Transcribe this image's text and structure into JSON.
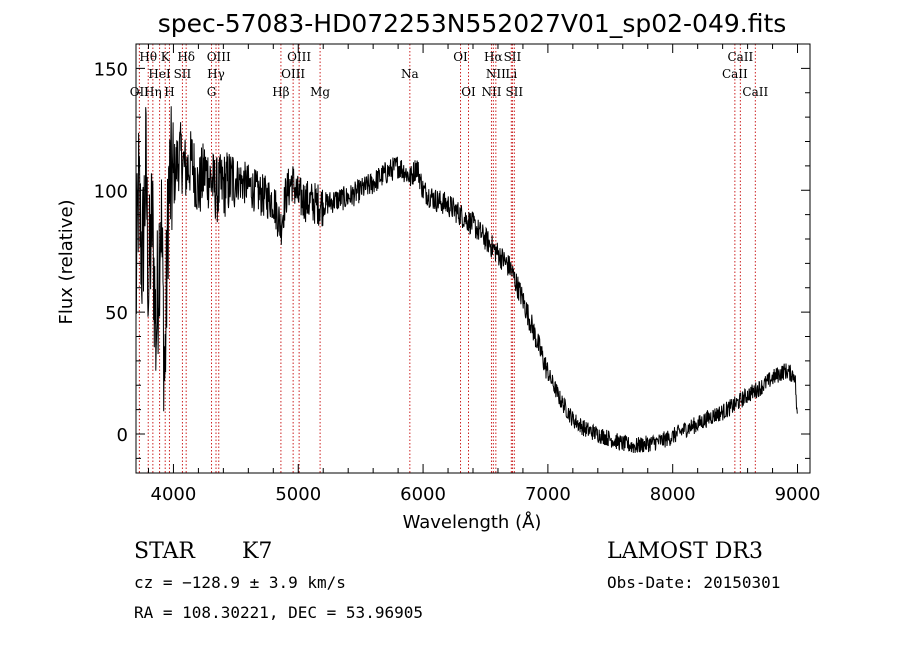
{
  "chart_data": {
    "type": "line",
    "title": "spec-57083-HD072253N552027V01_sp02-049.fits",
    "xlabel": "Wavelength (Å)",
    "ylabel": "Flux (relative)",
    "xlim": [
      3700,
      9100
    ],
    "ylim": [
      -16,
      160
    ],
    "xticks": [
      4000,
      5000,
      6000,
      7000,
      8000,
      9000
    ],
    "yticks": [
      0,
      50,
      100,
      150
    ],
    "spectrum_anchors": [
      [
        3700,
        55
      ],
      [
        3720,
        100
      ],
      [
        3750,
        70
      ],
      [
        3780,
        110
      ],
      [
        3800,
        60
      ],
      [
        3830,
        90
      ],
      [
        3860,
        40
      ],
      [
        3900,
        95
      ],
      [
        3930,
        20
      ],
      [
        3960,
        100
      ],
      [
        4000,
        105
      ],
      [
        4050,
        115
      ],
      [
        4100,
        108
      ],
      [
        4150,
        112
      ],
      [
        4200,
        100
      ],
      [
        4250,
        108
      ],
      [
        4300,
        104
      ],
      [
        4350,
        100
      ],
      [
        4400,
        102
      ],
      [
        4500,
        105
      ],
      [
        4600,
        102
      ],
      [
        4700,
        98
      ],
      [
        4800,
        96
      ],
      [
        4860,
        85
      ],
      [
        4900,
        98
      ],
      [
        4950,
        104
      ],
      [
        5000,
        97
      ],
      [
        5100,
        95
      ],
      [
        5200,
        94
      ],
      [
        5300,
        96
      ],
      [
        5400,
        97
      ],
      [
        5500,
        100
      ],
      [
        5600,
        103
      ],
      [
        5700,
        107
      ],
      [
        5800,
        110
      ],
      [
        5850,
        108
      ],
      [
        5900,
        105
      ],
      [
        5950,
        110
      ],
      [
        6000,
        100
      ],
      [
        6100,
        96
      ],
      [
        6200,
        94
      ],
      [
        6300,
        90
      ],
      [
        6400,
        86
      ],
      [
        6500,
        80
      ],
      [
        6600,
        74
      ],
      [
        6700,
        68
      ],
      [
        6800,
        55
      ],
      [
        6900,
        40
      ],
      [
        7000,
        25
      ],
      [
        7100,
        14
      ],
      [
        7200,
        6
      ],
      [
        7300,
        2
      ],
      [
        7400,
        0
      ],
      [
        7500,
        -2
      ],
      [
        7600,
        -4
      ],
      [
        7700,
        -5
      ],
      [
        7800,
        -4
      ],
      [
        7900,
        -3
      ],
      [
        8000,
        -1
      ],
      [
        8100,
        2
      ],
      [
        8200,
        4
      ],
      [
        8300,
        7
      ],
      [
        8400,
        9
      ],
      [
        8500,
        12
      ],
      [
        8600,
        16
      ],
      [
        8700,
        19
      ],
      [
        8800,
        23
      ],
      [
        8900,
        26
      ],
      [
        8980,
        24
      ],
      [
        9000,
        4
      ]
    ],
    "emission_lines": [
      {
        "label": "OII",
        "x": 3727,
        "row": 3
      },
      {
        "label": "Hθ",
        "x": 3798,
        "row": 1
      },
      {
        "label": "Hη",
        "x": 3835,
        "row": 3
      },
      {
        "label": "HeI",
        "x": 3889,
        "row": 2
      },
      {
        "label": "K",
        "x": 3934,
        "row": 1
      },
      {
        "label": "H",
        "x": 3968,
        "row": 3
      },
      {
        "label": "SII",
        "x": 4072,
        "row": 2
      },
      {
        "label": "Hδ",
        "x": 4102,
        "row": 1
      },
      {
        "label": "G",
        "x": 4305,
        "row": 3
      },
      {
        "label": "Hγ",
        "x": 4341,
        "row": 2
      },
      {
        "label": "OIII",
        "x": 4363,
        "row": 1
      },
      {
        "label": "Hβ",
        "x": 4861,
        "row": 3
      },
      {
        "label": "OIII",
        "x": 4959,
        "row": 2
      },
      {
        "label": "OIII",
        "x": 5007,
        "row": 1
      },
      {
        "label": "Mg",
        "x": 5175,
        "row": 3
      },
      {
        "label": "Na",
        "x": 5894,
        "row": 2
      },
      {
        "label": "OI",
        "x": 6300,
        "row": 1
      },
      {
        "label": "OI",
        "x": 6364,
        "row": 3
      },
      {
        "label": "NII",
        "x": 6548,
        "row": 3
      },
      {
        "label": "Hα",
        "x": 6563,
        "row": 1
      },
      {
        "label": "NII",
        "x": 6583,
        "row": 2
      },
      {
        "label": "Li",
        "x": 6707,
        "row": 2
      },
      {
        "label": "SII",
        "x": 6716,
        "row": 1
      },
      {
        "label": "SII",
        "x": 6731,
        "row": 3
      },
      {
        "label": "CaII",
        "x": 8498,
        "row": 2
      },
      {
        "label": "CaII",
        "x": 8542,
        "row": 1
      },
      {
        "label": "CaII",
        "x": 8662,
        "row": 3
      }
    ]
  },
  "info": {
    "class": "STAR",
    "subclass": "K7",
    "survey": "LAMOST DR3",
    "cz": "cz = −128.9 ± 3.9 km/s",
    "obs_date": "Obs-Date: 20150301",
    "radec": "RA = 108.30221, DEC =  53.96905"
  }
}
